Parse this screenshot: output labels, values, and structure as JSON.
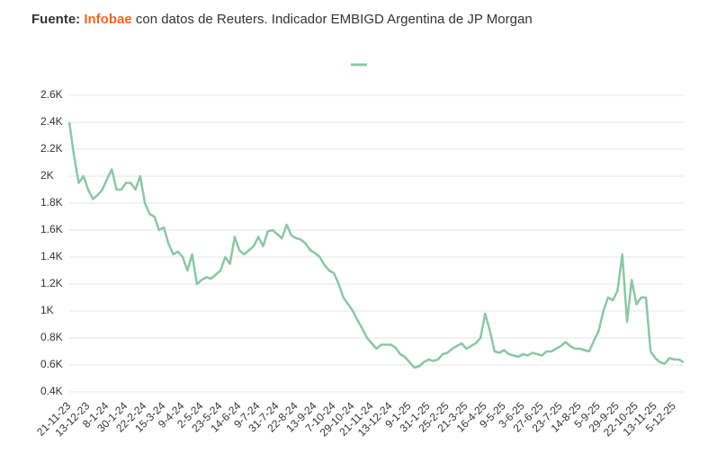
{
  "chart_data": {
    "type": "line",
    "source_label": "Fuente:",
    "source_name": "Infobae",
    "title": "con datos de Reuters. Indicador EMBIGD Argentina de JP Morgan",
    "categories": [
      "21-11-23",
      null,
      null,
      null,
      "13-12-23",
      null,
      null,
      null,
      "8-1-24",
      null,
      null,
      null,
      "30-1-24",
      null,
      null,
      null,
      "22-2-24",
      null,
      null,
      null,
      "15-3-24",
      null,
      null,
      null,
      "9-4-24",
      null,
      null,
      null,
      "2-5-24",
      null,
      null,
      null,
      "23-5-24",
      null,
      null,
      null,
      "14-6-24",
      null,
      null,
      null,
      "9-7-24",
      null,
      null,
      null,
      "31-7-24",
      null,
      null,
      null,
      "22-8-24",
      null,
      null,
      null,
      "13-9-24",
      null,
      null,
      null,
      "7-10-24",
      null,
      null,
      null,
      "29-10-24",
      null,
      null,
      null,
      "21-11-24",
      null,
      null,
      null,
      "13-12-24",
      null,
      null,
      null,
      "9-1-25",
      null,
      null,
      null,
      "31-1-25",
      null,
      null,
      null,
      "25-2-25",
      null,
      null,
      null,
      "21-3-25",
      null,
      null,
      null,
      "16-4-25",
      null,
      null,
      null,
      "9-5-25",
      null,
      null,
      null,
      "3-6-25",
      null,
      null,
      null,
      "27-6-25",
      null,
      null,
      null,
      "23-7-25",
      null,
      null,
      null,
      "14-8-25",
      null,
      null,
      null,
      "5-9-25",
      null,
      null,
      null,
      "29-9-25",
      null,
      null,
      null,
      "22-10-25",
      null,
      null,
      null,
      "13-11-25",
      null,
      null,
      null,
      "5-12-25",
      null,
      null
    ],
    "series": [
      {
        "color": "#8cc7a4",
        "values": [
          2400,
          2150,
          1950,
          2000,
          1900,
          1830,
          1860,
          1900,
          1980,
          2050,
          1900,
          1900,
          1950,
          1950,
          1900,
          2000,
          1800,
          1720,
          1700,
          1600,
          1620,
          1500,
          1420,
          1440,
          1400,
          1300,
          1420,
          1200,
          1230,
          1250,
          1240,
          1270,
          1300,
          1400,
          1350,
          1550,
          1450,
          1420,
          1450,
          1480,
          1550,
          1480,
          1590,
          1600,
          1570,
          1540,
          1640,
          1560,
          1540,
          1530,
          1500,
          1450,
          1430,
          1400,
          1340,
          1300,
          1280,
          1200,
          1100,
          1050,
          1000,
          930,
          870,
          800,
          760,
          720,
          750,
          750,
          750,
          730,
          680,
          660,
          620,
          580,
          590,
          620,
          640,
          630,
          640,
          680,
          690,
          720,
          740,
          760,
          720,
          740,
          760,
          800,
          980,
          850,
          700,
          690,
          710,
          680,
          670,
          660,
          680,
          670,
          690,
          680,
          670,
          700,
          700,
          720,
          740,
          770,
          740,
          720,
          720,
          710,
          700,
          780,
          850,
          1000,
          1100,
          1080,
          1150,
          1420,
          920,
          1230,
          1050,
          1100,
          1100,
          700,
          650,
          620,
          610,
          650,
          640,
          640,
          620
        ]
      }
    ],
    "ylim": [
      400,
      2600
    ],
    "yticks": [
      {
        "value": 400,
        "label": "0.4K"
      },
      {
        "value": 600,
        "label": "0.6K"
      },
      {
        "value": 800,
        "label": "0.8K"
      },
      {
        "value": 1000,
        "label": "1K"
      },
      {
        "value": 1200,
        "label": "1.2K"
      },
      {
        "value": 1400,
        "label": "1.4K"
      },
      {
        "value": 1600,
        "label": "1.6K"
      },
      {
        "value": 1800,
        "label": "1.8K"
      },
      {
        "value": 2000,
        "label": "2K"
      },
      {
        "value": 2200,
        "label": "2.2K"
      },
      {
        "value": 2400,
        "label": "2.4K"
      },
      {
        "value": 2600,
        "label": "2.6K"
      }
    ],
    "grid": true,
    "accent_color": "#f26522"
  }
}
